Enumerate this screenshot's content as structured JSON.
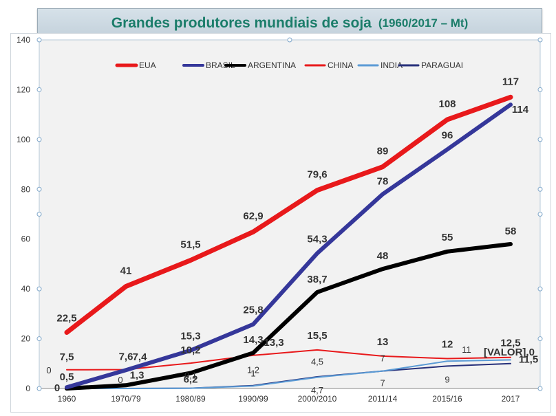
{
  "chart_data": {
    "type": "line",
    "title": "Grandes produtores mundiais de soja",
    "subtitle": "(1960/2017 – Mt)",
    "categories": [
      "1960",
      "1970/79",
      "1980/89",
      "1990/99",
      "2000/2010",
      "2011/14",
      "2015/16",
      "2017"
    ],
    "ylim": [
      0,
      140
    ],
    "yticks": [
      0,
      20,
      40,
      60,
      80,
      100,
      120,
      140
    ],
    "grid": false,
    "legend": "top",
    "series": [
      {
        "name": "EUA",
        "color": "#e8191b",
        "width": 7,
        "values": [
          22.5,
          41,
          51.5,
          62.9,
          79.6,
          89,
          108,
          117
        ],
        "labels": [
          "22,5",
          "41",
          "51,5",
          "62,9",
          "79,6",
          "89",
          "108",
          "117"
        ]
      },
      {
        "name": "BRASIL",
        "color": "#35379a",
        "width": 6,
        "values": [
          0.5,
          7.4,
          15.3,
          25.8,
          54.3,
          78,
          96,
          114
        ],
        "labels": [
          "0,5",
          "7,4",
          "15,3",
          "25,8",
          "54,3",
          "78",
          "96",
          "114"
        ]
      },
      {
        "name": "ARGENTINA",
        "color": "#000000",
        "width": 6,
        "values": [
          0,
          1.3,
          6.2,
          14.3,
          38.7,
          48,
          55,
          58
        ],
        "labels": [
          "0",
          "1,3",
          "6,2",
          "14,3",
          "38,7",
          "48",
          "55",
          "58"
        ]
      },
      {
        "name": "CHINA",
        "color": "#e8191b",
        "width": 2,
        "values": [
          7.5,
          7.6,
          10.2,
          13.3,
          15.5,
          13,
          12,
          12.5
        ],
        "labels": [
          "7,5",
          "7,6",
          "10,2",
          "13,3",
          "15,5",
          "13",
          "12",
          "12,5"
        ]
      },
      {
        "name": "INDIA",
        "color": "#5b9bd5",
        "width": 2,
        "values": [
          0,
          0,
          0.1,
          1,
          4.5,
          7,
          11,
          11.5
        ],
        "labels": [
          "0",
          "0",
          "0,1",
          "1",
          "4,5",
          "7",
          "11",
          "11,5"
        ]
      },
      {
        "name": "PARAGUAI",
        "color": "#26307a",
        "width": 2,
        "values": [
          0,
          0,
          0.1,
          1.2,
          4.7,
          7,
          9,
          10
        ],
        "labels": [
          "0",
          "0",
          "0,1",
          "1,2",
          "4,7",
          "7",
          "9",
          "[VALOR],0"
        ]
      }
    ]
  }
}
